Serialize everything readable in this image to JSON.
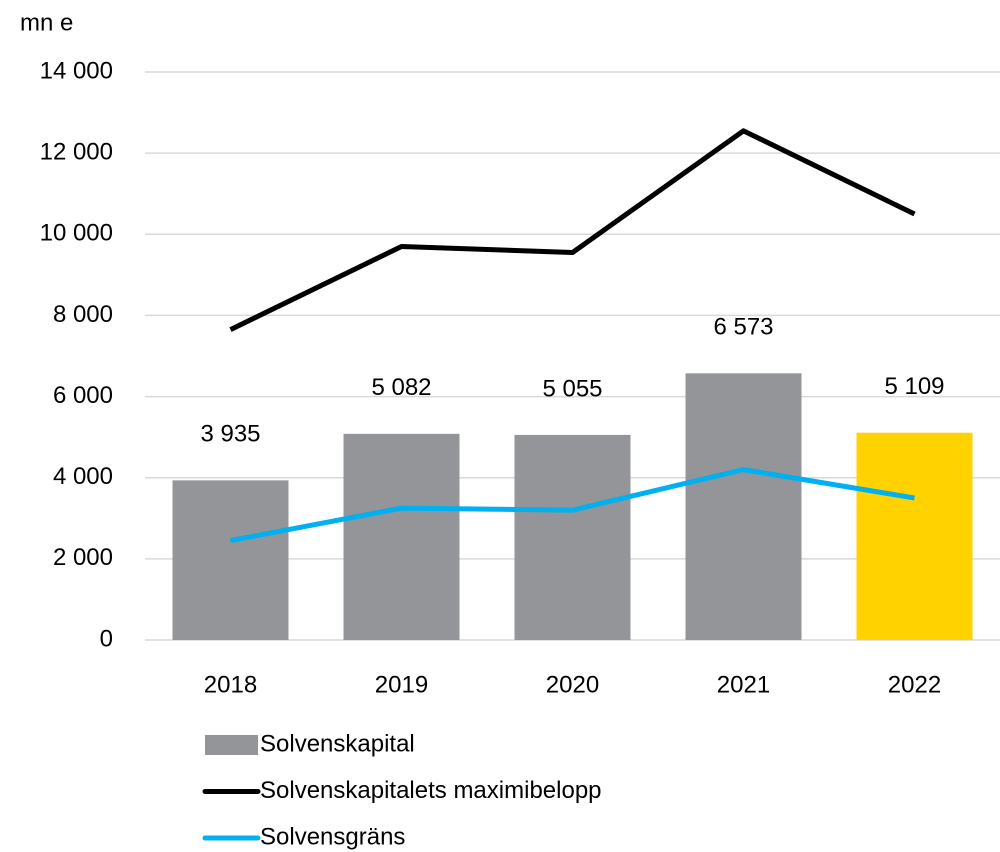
{
  "chart_data": {
    "type": "bar",
    "y_label": "mn e",
    "categories": [
      "2018",
      "2019",
      "2020",
      "2021",
      "2022"
    ],
    "series": [
      {
        "name": "Solvenskapital",
        "type": "bar",
        "color": "#939598",
        "colors": [
          "#939598",
          "#939598",
          "#939598",
          "#939598",
          "#ffd200"
        ],
        "values": [
          3935,
          5082,
          5055,
          6573,
          5109
        ],
        "value_labels": [
          "3 935",
          "5 082",
          "5 055",
          "6 573",
          "5 109"
        ]
      },
      {
        "name": "Solvenskapitalets maximibelopp",
        "type": "line",
        "color": "#000000",
        "values": [
          7650,
          9700,
          9550,
          12550,
          10500
        ]
      },
      {
        "name": "Solvensgräns",
        "type": "line",
        "color": "#00b0f0",
        "values": [
          2450,
          3250,
          3200,
          4200,
          3500
        ]
      }
    ],
    "ylim": [
      0,
      14000
    ],
    "yticks": [
      0,
      {
        "value": 2000,
        "label": "2 000"
      },
      {
        "value": 4000,
        "label": "4 000"
      },
      {
        "value": 6000,
        "label": "6 000"
      },
      {
        "value": 8000,
        "label": "8 000"
      },
      {
        "value": 10000,
        "label": "10 000"
      },
      {
        "value": 12000,
        "label": "12 000"
      },
      {
        "value": 14000,
        "label": "14 000"
      }
    ],
    "grid": true,
    "legend": "bottom"
  }
}
